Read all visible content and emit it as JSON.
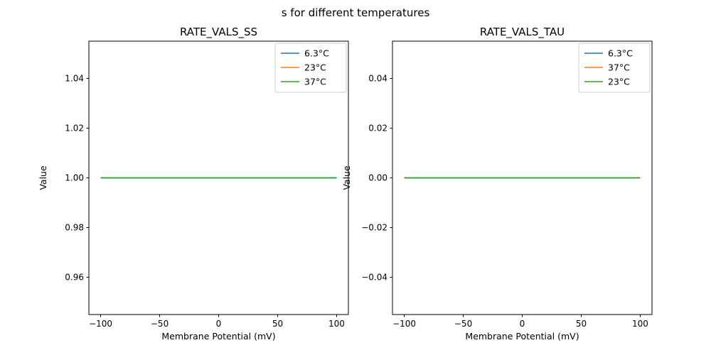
{
  "figure": {
    "suptitle": "s for different temperatures",
    "background": "#ffffff"
  },
  "chart_data": [
    {
      "type": "line",
      "title": "RATE_VALS_SS",
      "xlabel": "Membrane Potential (mV)",
      "ylabel": "Value",
      "xlim": [
        -110,
        110
      ],
      "ylim": [
        0.945,
        1.055
      ],
      "xticks": [
        -100,
        -50,
        0,
        50,
        100
      ],
      "xtick_labels": [
        "−100",
        "−50",
        "0",
        "50",
        "100"
      ],
      "yticks": [
        0.96,
        0.98,
        1.0,
        1.02,
        1.04
      ],
      "ytick_labels": [
        "0.96",
        "0.98",
        "1.00",
        "1.02",
        "1.04"
      ],
      "x": [
        -100,
        100
      ],
      "series": [
        {
          "name": "6.3°C",
          "color": "#1f77b4",
          "values": [
            1.0,
            1.0
          ]
        },
        {
          "name": "23°C",
          "color": "#ff7f0e",
          "values": [
            1.0,
            1.0
          ]
        },
        {
          "name": "37°C",
          "color": "#2ca02c",
          "values": [
            1.0,
            1.0
          ]
        }
      ],
      "legend": {
        "position": "upper right"
      },
      "grid": false
    },
    {
      "type": "line",
      "title": "RATE_VALS_TAU",
      "xlabel": "Membrane Potential (mV)",
      "ylabel": "Value",
      "xlim": [
        -110,
        110
      ],
      "ylim": [
        -0.055,
        0.055
      ],
      "xticks": [
        -100,
        -50,
        0,
        50,
        100
      ],
      "xtick_labels": [
        "−100",
        "−50",
        "0",
        "50",
        "100"
      ],
      "yticks": [
        -0.04,
        -0.02,
        0.0,
        0.02,
        0.04
      ],
      "ytick_labels": [
        "−0.04",
        "−0.02",
        "0.00",
        "0.02",
        "0.04"
      ],
      "x": [
        -100,
        100
      ],
      "series": [
        {
          "name": "6.3°C",
          "color": "#1f77b4",
          "values": [
            0.0,
            0.0
          ]
        },
        {
          "name": "37°C",
          "color": "#ff7f0e",
          "values": [
            0.0,
            0.0
          ]
        },
        {
          "name": "23°C",
          "color": "#2ca02c",
          "values": [
            0.0,
            0.0
          ]
        }
      ],
      "legend": {
        "position": "upper right"
      },
      "grid": false
    }
  ]
}
